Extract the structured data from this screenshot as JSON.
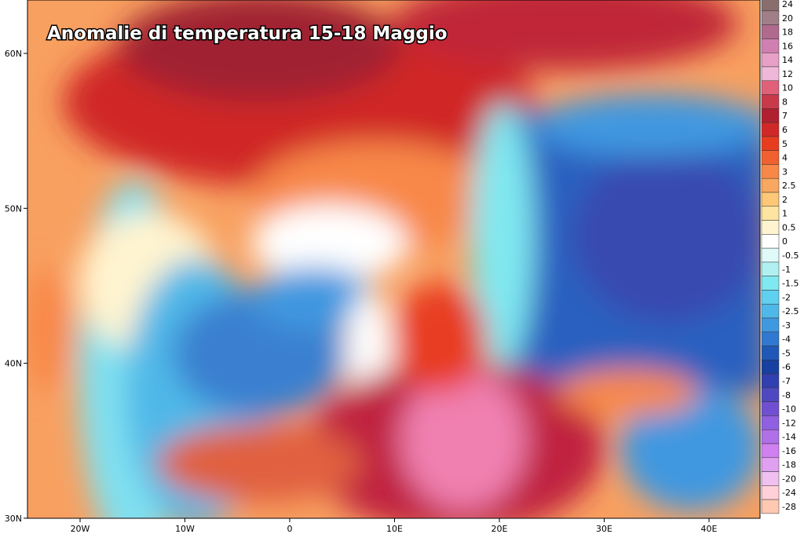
{
  "title": "Anomalie di temperatura 15-18 Maggio",
  "latitude_labels": [
    "60N",
    "50N",
    "40N",
    "30N"
  ],
  "longitude_labels": [
    "20W",
    "10W",
    "0",
    "10E",
    "20E",
    "30E",
    "40E"
  ],
  "legend": {
    "levels": [
      {
        "label": "24",
        "color": "#8a6e6e"
      },
      {
        "label": "20",
        "color": "#a07f88"
      },
      {
        "label": "18",
        "color": "#b06a8c"
      },
      {
        "label": "16",
        "color": "#d080b0"
      },
      {
        "label": "14",
        "color": "#e8a0c8"
      },
      {
        "label": "12",
        "color": "#f0b8d8"
      },
      {
        "label": "10",
        "color": "#e0607a"
      },
      {
        "label": "8",
        "color": "#c83a4a"
      },
      {
        "label": "7",
        "color": "#b02030"
      },
      {
        "label": "6",
        "color": "#d02828"
      },
      {
        "label": "5",
        "color": "#e83c20"
      },
      {
        "label": "4",
        "color": "#f06030"
      },
      {
        "label": "3",
        "color": "#f88848"
      },
      {
        "label": "2.5",
        "color": "#f8a860"
      },
      {
        "label": "2",
        "color": "#fcc878"
      },
      {
        "label": "1",
        "color": "#fde4a0"
      },
      {
        "label": "0.5",
        "color": "#fff4d0"
      },
      {
        "label": "0",
        "color": "#ffffff"
      },
      {
        "label": "-0.5",
        "color": "#e0fafa"
      },
      {
        "label": "-1",
        "color": "#b0f0f0"
      },
      {
        "label": "-1.5",
        "color": "#80e8f0"
      },
      {
        "label": "-2",
        "color": "#60d0f0"
      },
      {
        "label": "-2.5",
        "color": "#50b8e8"
      },
      {
        "label": "-3",
        "color": "#4098e0"
      },
      {
        "label": "-4",
        "color": "#3078d0"
      },
      {
        "label": "-5",
        "color": "#2058b8"
      },
      {
        "label": "-6",
        "color": "#1840a0"
      },
      {
        "label": "-7",
        "color": "#3040b0"
      },
      {
        "label": "-8",
        "color": "#5048c0"
      },
      {
        "label": "-10",
        "color": "#7050d0"
      },
      {
        "label": "-12",
        "color": "#9060e0"
      },
      {
        "label": "-14",
        "color": "#b070e8"
      },
      {
        "label": "-16",
        "color": "#d080f0"
      },
      {
        "label": "-18",
        "color": "#e0a0f0"
      },
      {
        "label": "-20",
        "color": "#f0c0f0"
      },
      {
        "label": "-24",
        "color": "#ffd0d8"
      },
      {
        "label": "-28",
        "color": "#ffc8b0"
      }
    ]
  }
}
